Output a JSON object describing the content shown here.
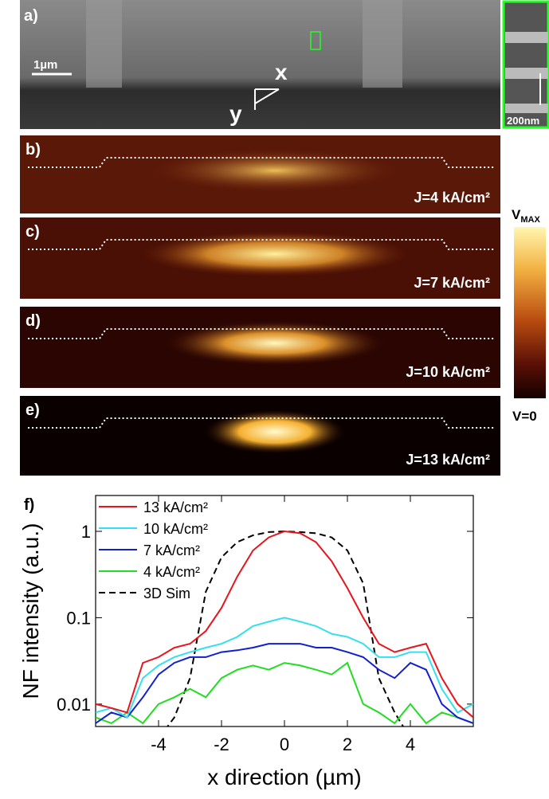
{
  "panels": {
    "a": {
      "label": "a)",
      "scale_bar": "1µm",
      "axis_x": "x",
      "axis_y": "y",
      "inset_scale": "200nm"
    },
    "b": {
      "label": "b)",
      "current": "J=4 kA/cm²"
    },
    "c": {
      "label": "c)",
      "current": "J=7 kA/cm²"
    },
    "d": {
      "label": "d)",
      "current": "J=10 kA/cm²"
    },
    "e": {
      "label": "e)",
      "current": "J=13 kA/cm²"
    },
    "colorbar": {
      "top_main": "V",
      "top_sub": "MAX",
      "bottom": "V=0"
    }
  },
  "chart_data": {
    "type": "line",
    "panel_label": "f)",
    "x_label": "x direction (µm)",
    "y_label": "NF intensity (a.u.)",
    "log_y": true,
    "legend": "upper-left",
    "xlim": [
      -6,
      6
    ],
    "xticks": [
      -4,
      -2,
      0,
      2,
      4
    ],
    "ylim": [
      0.0055,
      2.6
    ],
    "yticks": [
      0.01,
      0.1,
      1
    ],
    "x": [
      -6,
      -5.5,
      -5,
      -4.5,
      -4,
      -3.5,
      -3,
      -2.5,
      -2,
      -1.5,
      -1,
      -0.5,
      0,
      0.5,
      1,
      1.5,
      2,
      2.5,
      3,
      3.5,
      4,
      4.5,
      5,
      5.5,
      6
    ],
    "series": [
      {
        "name": "13 kA/cm²",
        "color": "#e8141c",
        "dash": false,
        "values": [
          0.01,
          0.009,
          0.008,
          0.03,
          0.035,
          0.045,
          0.05,
          0.07,
          0.13,
          0.3,
          0.6,
          0.85,
          1,
          0.95,
          0.75,
          0.45,
          0.22,
          0.1,
          0.05,
          0.04,
          0.045,
          0.05,
          0.02,
          0.01,
          0.007
        ]
      },
      {
        "name": "10 kA/cm²",
        "color": "#33e0f0",
        "dash": false,
        "values": [
          0.008,
          0.009,
          0.007,
          0.02,
          0.028,
          0.035,
          0.04,
          0.045,
          0.05,
          0.06,
          0.08,
          0.09,
          0.1,
          0.09,
          0.08,
          0.065,
          0.06,
          0.05,
          0.035,
          0.035,
          0.04,
          0.04,
          0.015,
          0.008,
          0.01
        ]
      },
      {
        "name": "7 kA/cm²",
        "color": "#1020d0",
        "dash": false,
        "values": [
          0.006,
          0.008,
          0.007,
          0.012,
          0.022,
          0.03,
          0.035,
          0.035,
          0.04,
          0.042,
          0.045,
          0.05,
          0.05,
          0.05,
          0.045,
          0.045,
          0.04,
          0.035,
          0.025,
          0.02,
          0.03,
          0.025,
          0.01,
          0.007,
          0.006
        ]
      },
      {
        "name": "4 kA/cm²",
        "color": "#22dd22",
        "dash": false,
        "values": [
          0.007,
          0.006,
          0.008,
          0.006,
          0.01,
          0.012,
          0.015,
          0.012,
          0.02,
          0.025,
          0.028,
          0.025,
          0.03,
          0.028,
          0.025,
          0.022,
          0.03,
          0.01,
          0.008,
          0.006,
          0.01,
          0.006,
          0.008,
          0.007,
          0.006
        ]
      },
      {
        "name": "3D Sim",
        "color": "#000000",
        "dash": true,
        "values": [
          null,
          null,
          null,
          null,
          0.004,
          0.007,
          0.02,
          0.2,
          0.5,
          0.75,
          0.9,
          0.98,
          1,
          0.98,
          0.95,
          0.85,
          0.6,
          0.25,
          0.02,
          0.008,
          0.004,
          null,
          null,
          null,
          null
        ]
      }
    ]
  }
}
